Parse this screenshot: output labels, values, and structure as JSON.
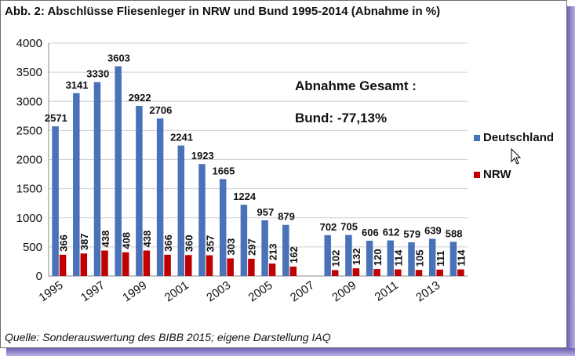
{
  "title": "Abb. 2: Abschlüsse Fliesenleger in NRW und Bund 1995-2014 (Abnahme in %)",
  "source": "Quelle: Sonderauswertung des BIBB 2015; eigene Darstellung IAQ",
  "annotation": {
    "line1": "Abnahme Gesamt :",
    "line2": "Bund: -77,13%"
  },
  "colors": {
    "deutschland": "#4a72b8",
    "nrw": "#c00000",
    "grid": "#d0d0d0",
    "shadow": "#7a6fc4"
  },
  "cursor_icon": "mouse-pointer-icon",
  "chart_data": {
    "type": "bar",
    "categories": [
      "1995",
      "1996",
      "1997",
      "1998",
      "1999",
      "2000",
      "2001",
      "2002",
      "2003",
      "2004",
      "2005",
      "2006",
      "2007",
      "2008",
      "2009",
      "2010",
      "2011",
      "2012",
      "2013",
      "2014"
    ],
    "x_tick_labels": [
      "1995",
      "1997",
      "1999",
      "2001",
      "2003",
      "2005",
      "2007",
      "2009",
      "2011",
      "2013"
    ],
    "series": [
      {
        "name": "Deutschland",
        "values": [
          2571,
          3141,
          3330,
          3603,
          2922,
          2706,
          2241,
          1923,
          1665,
          1224,
          957,
          879,
          null,
          702,
          705,
          606,
          612,
          579,
          639,
          588
        ]
      },
      {
        "name": "NRW",
        "values": [
          366,
          387,
          438,
          408,
          438,
          366,
          360,
          357,
          303,
          297,
          213,
          162,
          null,
          102,
          132,
          120,
          114,
          105,
          111,
          114
        ]
      }
    ],
    "ylim": [
      0,
      4000
    ],
    "yticks": [
      "0",
      "500",
      "1000",
      "1500",
      "2000",
      "2500",
      "3000",
      "3500",
      "4000"
    ],
    "grid": true,
    "legend": "right"
  }
}
